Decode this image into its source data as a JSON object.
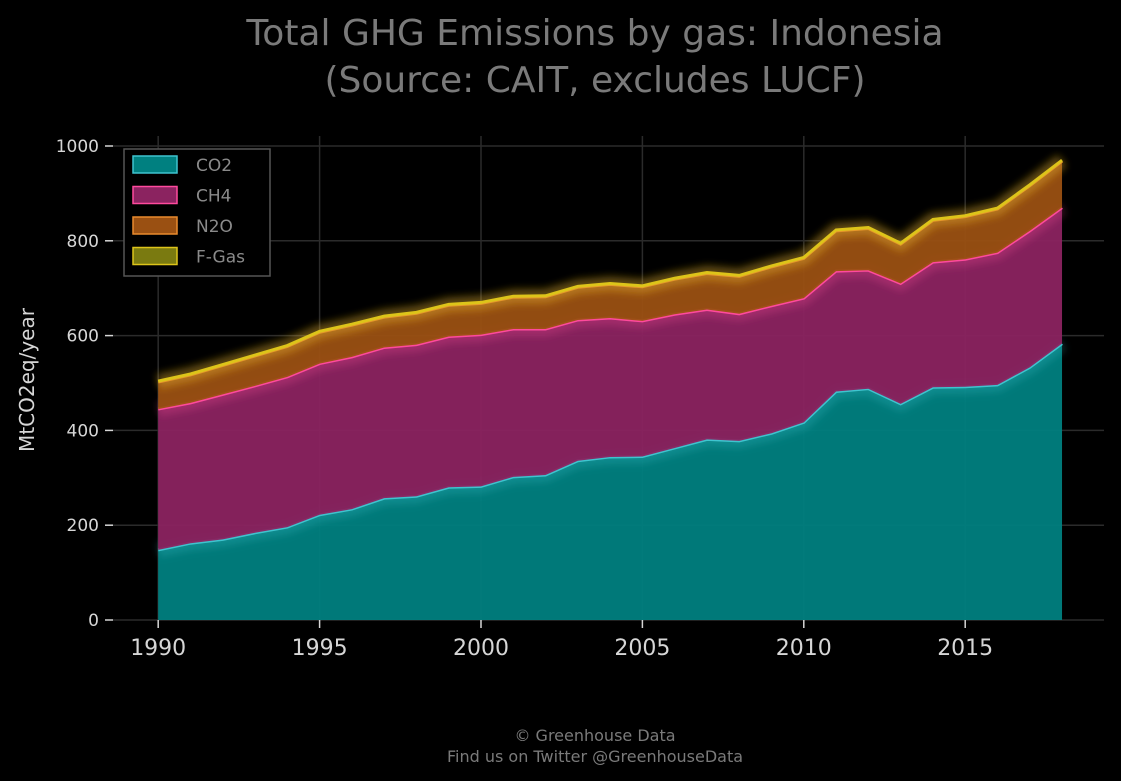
{
  "chart_data": {
    "type": "area",
    "stacked": true,
    "title": [
      "Total GHG Emissions by gas: Indonesia",
      "(Source: CAIT, excludes LUCF)"
    ],
    "xlabel": "",
    "ylabel": "MtCO2eq/year",
    "xlim": [
      1988.6,
      2019.3
    ],
    "ylim": [
      0,
      1000
    ],
    "xticks": [
      1990,
      1995,
      2000,
      2005,
      2010,
      2015
    ],
    "yticks": [
      0,
      200,
      400,
      600,
      800,
      1000
    ],
    "grid": true,
    "legend_position": "top-left",
    "x": [
      1990,
      1991,
      1992,
      1993,
      1994,
      1995,
      1996,
      1997,
      1998,
      1999,
      2000,
      2001,
      2002,
      2003,
      2004,
      2005,
      2006,
      2007,
      2008,
      2009,
      2010,
      2011,
      2012,
      2013,
      2014,
      2015,
      2016,
      2017,
      2018
    ],
    "series": [
      {
        "name": "CO2",
        "color": "#008080",
        "line": "#3fc4cf",
        "values": [
          148,
          162,
          170,
          184,
          196,
          222,
          234,
          257,
          261,
          280,
          282,
          302,
          306,
          336,
          344,
          345,
          363,
          381,
          378,
          394,
          417,
          482,
          488,
          456,
          491,
          492,
          496,
          533,
          583
        ]
      },
      {
        "name": "CH4",
        "color": "#8b2360",
        "line": "#ff4a9d",
        "values": [
          297,
          296,
          306,
          310,
          317,
          319,
          321,
          318,
          320,
          318,
          320,
          312,
          308,
          297,
          293,
          286,
          282,
          274,
          268,
          269,
          262,
          254,
          250,
          254,
          264,
          269,
          279,
          288,
          287
        ]
      },
      {
        "name": "N2O",
        "color": "#9a5012",
        "line": "#e98a2d",
        "values": [
          57,
          59,
          61,
          63,
          64,
          66,
          67,
          64,
          66,
          66,
          66,
          67,
          68,
          69,
          71,
          72,
          74,
          76,
          79,
          82,
          84,
          85,
          88,
          83,
          88,
          90,
          92,
          95,
          98
        ]
      },
      {
        "name": "F-Gas",
        "color": "#7a7a10",
        "line": "#ddc41a",
        "values": [
          2,
          2,
          2,
          2,
          2,
          2,
          2,
          2,
          2,
          2,
          2,
          2,
          2,
          2,
          2,
          2,
          2,
          2,
          2,
          2,
          2,
          2,
          2,
          2,
          2,
          2,
          2,
          2,
          2
        ]
      }
    ]
  },
  "footer": {
    "line1": "© Greenhouse Data",
    "line2": "Find us on Twitter @GreenhouseData"
  }
}
